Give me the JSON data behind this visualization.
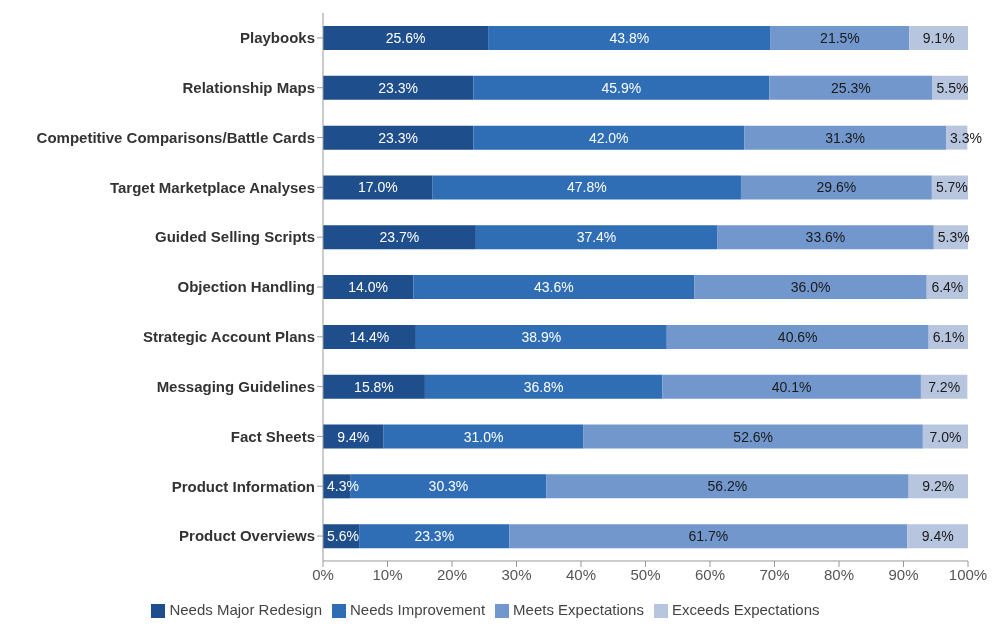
{
  "chart_data": {
    "type": "bar",
    "orientation": "horizontal",
    "stacked": true,
    "categories": [
      "Playbooks",
      "Relationship Maps",
      "Competitive Comparisons/Battle Cards",
      "Target Marketplace Analyses",
      "Guided Selling Scripts",
      "Objection Handling",
      "Strategic Account Plans",
      "Messaging Guidelines",
      "Fact Sheets",
      "Product Information",
      "Product Overviews"
    ],
    "series": [
      {
        "name": "Needs Major Redesign",
        "color": "#1f4e8c",
        "values": [
          25.6,
          23.3,
          23.3,
          17.0,
          23.7,
          14.0,
          14.4,
          15.8,
          9.4,
          4.3,
          5.6
        ],
        "value_labels": [
          "25.6%",
          "23.3%",
          "23.3%",
          "17.0%",
          "23.7%",
          "14.0%",
          "14.4%",
          "15.8%",
          "9.4%",
          "4.3%",
          "5.6%"
        ]
      },
      {
        "name": "Needs Improvement",
        "color": "#2f6db5",
        "values": [
          43.8,
          45.9,
          42.0,
          47.8,
          37.4,
          43.6,
          38.9,
          36.8,
          31.0,
          30.3,
          23.3
        ],
        "value_labels": [
          "43.8%",
          "45.9%",
          "42.0%",
          "47.8%",
          "37.4%",
          "43.6%",
          "38.9%",
          "36.8%",
          "31.0%",
          "30.3%",
          "23.3%"
        ]
      },
      {
        "name": "Meets Expectations",
        "color": "#7197cc",
        "values": [
          21.5,
          25.3,
          31.3,
          29.6,
          33.6,
          36.0,
          40.6,
          40.1,
          52.6,
          56.2,
          61.7
        ],
        "value_labels": [
          "21.5%",
          "25.3%",
          "31.3%",
          "29.6%",
          "33.6%",
          "36.0%",
          "40.6%",
          "40.1%",
          "52.6%",
          "56.2%",
          "61.7%"
        ]
      },
      {
        "name": "Exceeds Expectations",
        "color": "#b7c6de",
        "values": [
          9.1,
          5.5,
          3.3,
          5.7,
          5.3,
          6.4,
          6.1,
          7.2,
          7.0,
          9.2,
          9.4
        ],
        "value_labels": [
          "9.1%",
          "5.5%",
          "3.3%",
          "5.7%",
          "5.3%",
          "6.4%",
          "6.1%",
          "7.2%",
          "7.0%",
          "9.2%",
          "9.4%"
        ]
      }
    ],
    "xlim": [
      0,
      100
    ],
    "xticks": [
      {
        "value": 0,
        "label": "0%"
      },
      {
        "value": 10,
        "label": "10%"
      },
      {
        "value": 20,
        "label": "20%"
      },
      {
        "value": 30,
        "label": "30%"
      },
      {
        "value": 40,
        "label": "40%"
      },
      {
        "value": 50,
        "label": "50%"
      },
      {
        "value": 60,
        "label": "60%"
      },
      {
        "value": 70,
        "label": "70%"
      },
      {
        "value": 80,
        "label": "80%"
      },
      {
        "value": 90,
        "label": "90%"
      },
      {
        "value": 100,
        "label": "100%"
      }
    ],
    "grid": false,
    "legend": "bottom"
  }
}
